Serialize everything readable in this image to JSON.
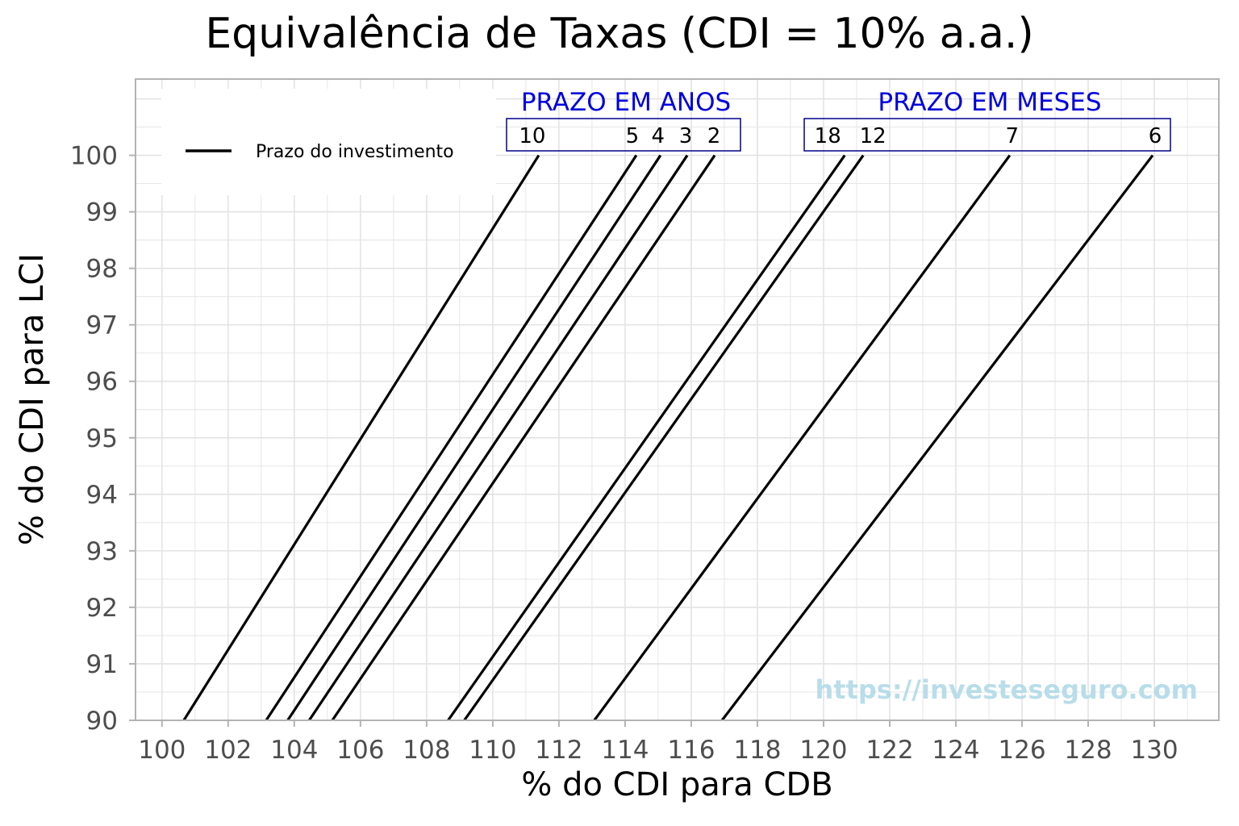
{
  "chart_data": {
    "type": "line",
    "title": "Equivalência de Taxas (CDI = 10% a.a.)",
    "xlabel": "% do CDI para CDB",
    "ylabel": "% do CDI para LCI",
    "xlim": [
      99.2,
      131.95
    ],
    "ylim": [
      90,
      101.35
    ],
    "xticks": [
      100,
      102,
      104,
      106,
      108,
      110,
      112,
      114,
      116,
      118,
      120,
      122,
      124,
      126,
      128,
      130
    ],
    "yticks": [
      90,
      91,
      92,
      93,
      94,
      95,
      96,
      97,
      98,
      99,
      100
    ],
    "grid": true,
    "legend": {
      "position": "top-left",
      "entries": [
        "Prazo do investimento"
      ]
    },
    "groups": [
      {
        "name": "PRAZO EM ANOS",
        "color": "#0000dd"
      },
      {
        "name": "PRAZO EM MESES",
        "color": "#0000dd"
      }
    ],
    "series": [
      {
        "name": "10",
        "group": "PRAZO EM ANOS",
        "x": [
          100.66,
          111.39
        ],
        "y": [
          90,
          100
        ]
      },
      {
        "name": "5",
        "group": "PRAZO EM ANOS",
        "x": [
          103.15,
          114.34
        ],
        "y": [
          90,
          100
        ]
      },
      {
        "name": "4",
        "group": "PRAZO EM ANOS",
        "x": [
          103.8,
          115.07
        ],
        "y": [
          90,
          100
        ]
      },
      {
        "name": "3",
        "group": "PRAZO EM ANOS",
        "x": [
          104.45,
          115.88
        ],
        "y": [
          90,
          100
        ]
      },
      {
        "name": "2",
        "group": "PRAZO EM ANOS",
        "x": [
          105.15,
          116.71
        ],
        "y": [
          90,
          100
        ]
      },
      {
        "name": "18",
        "group": "PRAZO EM MESES",
        "x": [
          108.65,
          120.64
        ],
        "y": [
          90,
          100
        ]
      },
      {
        "name": "12",
        "group": "PRAZO EM MESES",
        "x": [
          109.14,
          121.2
        ],
        "y": [
          90,
          100
        ]
      },
      {
        "name": "7",
        "group": "PRAZO EM MESES",
        "x": [
          113.07,
          125.63
        ],
        "y": [
          90,
          100
        ]
      },
      {
        "name": "6",
        "group": "PRAZO EM MESES",
        "x": [
          116.93,
          129.95
        ],
        "y": [
          90,
          100
        ]
      }
    ],
    "annotations": [
      "https://investeseguro.com"
    ]
  },
  "labels": {
    "title": "Equivalência de Taxas (CDI = 10% a.a.)",
    "xlabel": "% do CDI para CDB",
    "ylabel": "% do CDI para LCI",
    "legend": "Prazo do investimento",
    "group_years": "PRAZO EM ANOS",
    "group_months": "PRAZO EM MESES",
    "watermark": "https://investeseguro.com"
  },
  "colors": {
    "line": "#000000",
    "group_accent": "#0000dd",
    "box_border": "#00008b",
    "grid": "#e3e3e3",
    "axis": "#b3b3b3",
    "watermark": "#add8e6"
  }
}
